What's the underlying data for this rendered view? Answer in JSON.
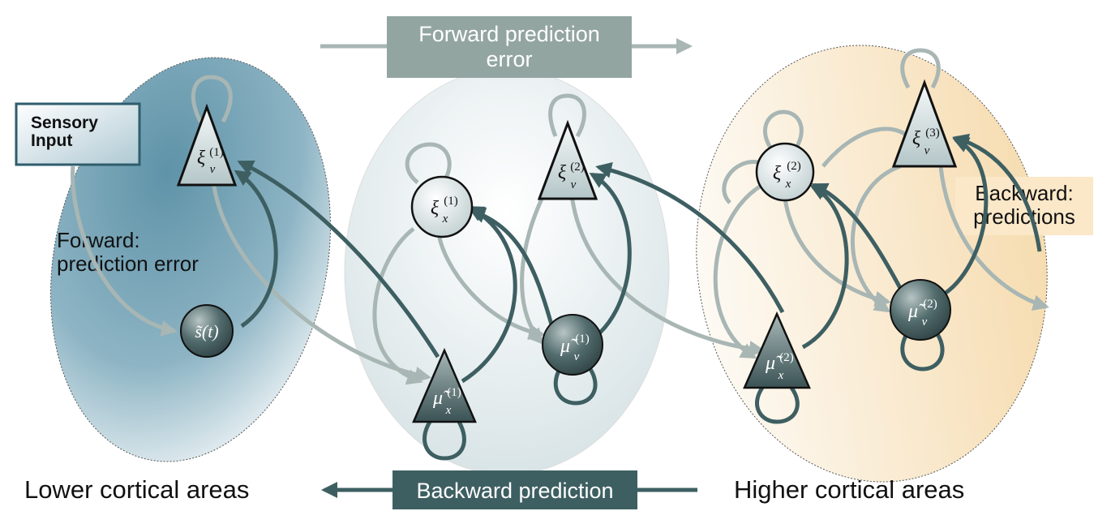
{
  "top_banner": {
    "text_line1": "Forward prediction",
    "text_line2": "error"
  },
  "bottom_banner": {
    "text": "Backward prediction"
  },
  "sensory_box": {
    "line1": "Sensory",
    "line2": "Input"
  },
  "forward_label": {
    "line1": "Forward:",
    "line2": "prediction error"
  },
  "backward_label": {
    "line1": "Backward:",
    "line2": "predictions"
  },
  "lower_label": "Lower cortical areas",
  "higher_label": "Higher cortical areas",
  "nodes": {
    "xi_v1": {
      "sym": "ξ",
      "sub": "v",
      "sup": "(1)"
    },
    "s_t": {
      "text": "s̃(t)"
    },
    "xi_x1": {
      "sym": "ξ",
      "sub": "x",
      "sup": "(1)"
    },
    "xi_v2": {
      "sym": "ξ",
      "sub": "v",
      "sup": "(2)"
    },
    "mu_x1": {
      "sym": "μ̃",
      "sub": "x",
      "sup": "(1)"
    },
    "mu_v1": {
      "sym": "μ̃",
      "sub": "v",
      "sup": "(1)"
    },
    "xi_x2": {
      "sym": "ξ",
      "sub": "x",
      "sup": "(2)"
    },
    "xi_v3": {
      "sym": "ξ",
      "sub": "v",
      "sup": "(3)"
    },
    "mu_x2": {
      "sym": "μ̃",
      "sub": "x",
      "sup": "(2)"
    },
    "mu_v2": {
      "sym": "μ̃",
      "sub": "v",
      "sup": "(2)"
    }
  },
  "colors": {
    "dark_teal": "#3e5f62",
    "light_grey": "#a8b6b4",
    "lower_area": "#7aa6b8",
    "middle_area": "#dfe7ea",
    "higher_area": "#f6e3c2",
    "top_banner": "#93a5a1",
    "bottom_banner": "#3e5f62",
    "backward_box": "#fbe8c8"
  }
}
